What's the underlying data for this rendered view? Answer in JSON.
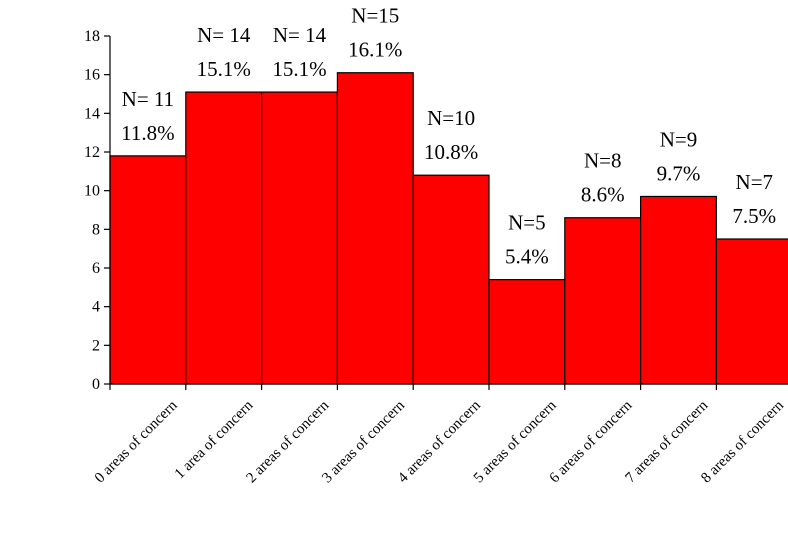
{
  "chart_data": {
    "type": "bar",
    "title": "",
    "xlabel": "",
    "ylabel": "",
    "ylim": [
      0,
      18
    ],
    "yticks": [
      0,
      2,
      4,
      6,
      8,
      10,
      12,
      14,
      16,
      18
    ],
    "grid": false,
    "legend": "none",
    "bar_color": "#ff0000",
    "categories": [
      "0 areas of concern",
      "1 area of concern",
      "2 areas of concern",
      "3 areas of concern",
      "4 areas of concern",
      "5 areas of concern",
      "6 areas of concern",
      "7 areas of concern",
      "8 areas of concern"
    ],
    "values": [
      11.8,
      15.1,
      15.1,
      16.1,
      10.8,
      5.4,
      8.6,
      9.7,
      7.5
    ],
    "data_labels": [
      {
        "count": "N= 11",
        "percent": "11.8%"
      },
      {
        "count": "N= 14",
        "percent": "15.1%"
      },
      {
        "count": "N= 14",
        "percent": "15.1%"
      },
      {
        "count": "N=15",
        "percent": "16.1%"
      },
      {
        "count": "N=10",
        "percent": "10.8%"
      },
      {
        "count": "N=5",
        "percent": "5.4%"
      },
      {
        "count": "N=8",
        "percent": "8.6%"
      },
      {
        "count": "N=9",
        "percent": "9.7%"
      },
      {
        "count": "N=7",
        "percent": "7.5%"
      }
    ]
  }
}
